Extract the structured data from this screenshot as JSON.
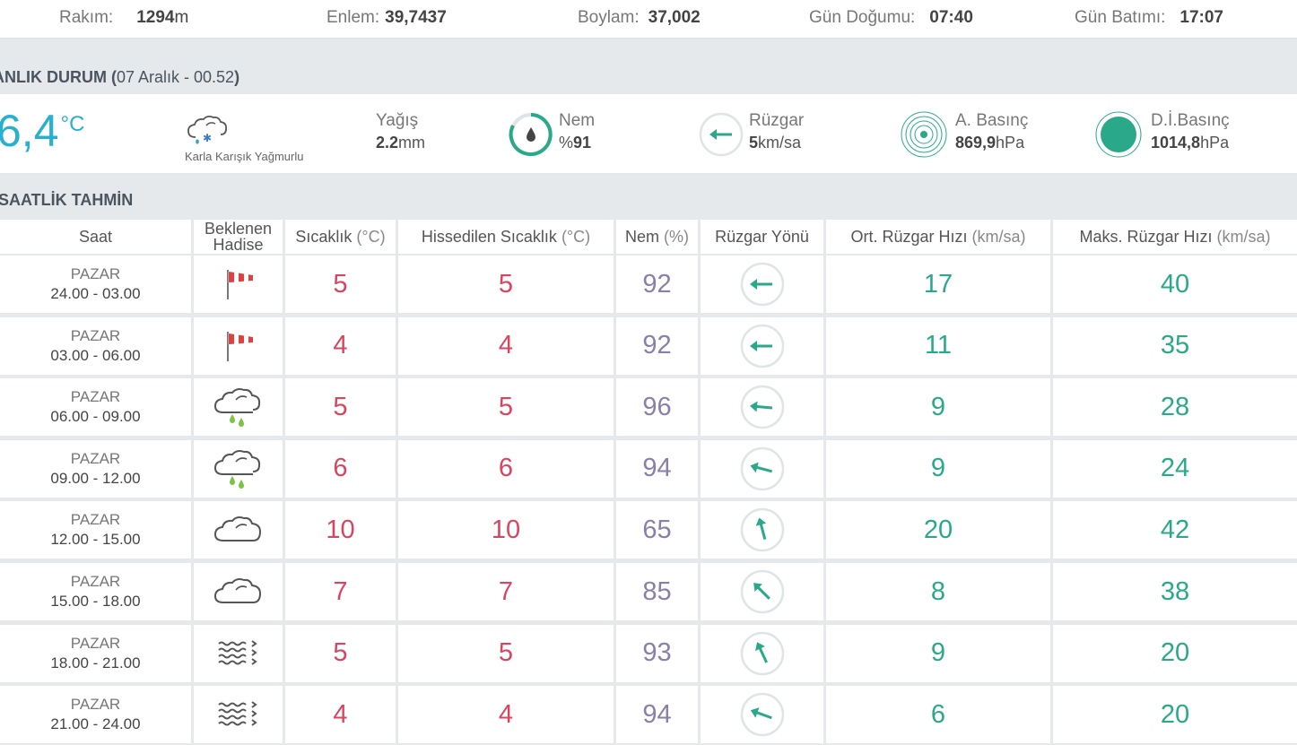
{
  "location": {
    "altitude_label": "Rakım:",
    "altitude_value": "1294",
    "altitude_unit": "m",
    "latitude_label": "Enlem:",
    "latitude_value": "39,7437",
    "longitude_label": "Boylam:",
    "longitude_value": "37,002",
    "sunrise_label": "Gün Doğumu:",
    "sunrise_value": "07:40",
    "sunset_label": "Gün Batımı:",
    "sunset_value": "17:07"
  },
  "current": {
    "section_title": "ANLIK DURUM",
    "section_date": "07 Aralık - 00.52",
    "temperature": "6,4",
    "temperature_unit": "°C",
    "condition": "Karla Karışık Yağmurlu",
    "condition_icon": "cloud-snow-icon",
    "precip_label": "Yağış",
    "precip_value": "2.2",
    "precip_unit": "mm",
    "humidity_label": "Nem",
    "humidity_prefix": "%",
    "humidity_value": "91",
    "wind_label": "Rüzgar",
    "wind_value": "5",
    "wind_unit": "km/sa",
    "pressure_label": "A. Basınç",
    "pressure_value": "869,9",
    "pressure_unit": "hPa",
    "sea_pressure_label": "D.İ.Basınç",
    "sea_pressure_value": "1014,8",
    "sea_pressure_unit": "hPa"
  },
  "hourly": {
    "section_title": "SAATLİK TAHMİN",
    "headers": {
      "time": "Saat",
      "event": "Beklenen Hadise",
      "temp": "Sıcaklık",
      "temp_unit": "(°C)",
      "feels": "Hissedilen Sıcaklık",
      "feels_unit": "(°C)",
      "humidity": "Nem",
      "humidity_unit": "(%)",
      "wind_dir": "Rüzgar Yönü",
      "wind_avg": "Ort. Rüzgar Hızı",
      "wind_avg_unit": "(km/sa)",
      "wind_max": "Maks. Rüzgar Hızı",
      "wind_max_unit": "(km/sa)"
    },
    "rows": [
      {
        "day": "PAZAR",
        "range": "24.00 - 03.00",
        "icon": "windsock-icon",
        "temp": "5",
        "feels": "5",
        "humidity": "92",
        "wind_dir_deg": 270,
        "wind_avg": "17",
        "wind_max": "40"
      },
      {
        "day": "PAZAR",
        "range": "03.00 - 06.00",
        "icon": "windsock-icon",
        "temp": "4",
        "feels": "4",
        "humidity": "92",
        "wind_dir_deg": 270,
        "wind_avg": "11",
        "wind_max": "35"
      },
      {
        "day": "PAZAR",
        "range": "06.00 - 09.00",
        "icon": "cloud-rain-icon",
        "temp": "5",
        "feels": "5",
        "humidity": "96",
        "wind_dir_deg": 275,
        "wind_avg": "9",
        "wind_max": "28"
      },
      {
        "day": "PAZAR",
        "range": "09.00 - 12.00",
        "icon": "cloud-rain-icon",
        "temp": "6",
        "feels": "6",
        "humidity": "94",
        "wind_dir_deg": 285,
        "wind_avg": "9",
        "wind_max": "24"
      },
      {
        "day": "PAZAR",
        "range": "12.00 - 15.00",
        "icon": "cloud-icon",
        "temp": "10",
        "feels": "10",
        "humidity": "65",
        "wind_dir_deg": 345,
        "wind_avg": "20",
        "wind_max": "42"
      },
      {
        "day": "PAZAR",
        "range": "15.00 - 18.00",
        "icon": "cloud-icon",
        "temp": "7",
        "feels": "7",
        "humidity": "85",
        "wind_dir_deg": 315,
        "wind_avg": "8",
        "wind_max": "38"
      },
      {
        "day": "PAZAR",
        "range": "18.00 - 21.00",
        "icon": "fog-icon",
        "temp": "5",
        "feels": "5",
        "humidity": "93",
        "wind_dir_deg": 335,
        "wind_avg": "9",
        "wind_max": "20"
      },
      {
        "day": "PAZAR",
        "range": "21.00 - 24.00",
        "icon": "fog-icon",
        "temp": "4",
        "feels": "4",
        "humidity": "94",
        "wind_dir_deg": 290,
        "wind_avg": "6",
        "wind_max": "20"
      }
    ]
  }
}
